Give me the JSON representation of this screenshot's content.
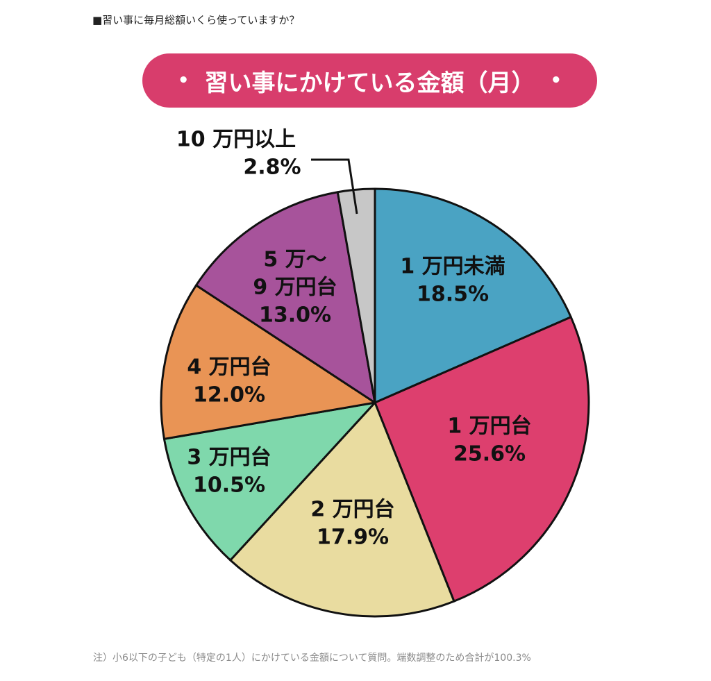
{
  "heading": "■習い事に毎月総額いくら使っていますか？",
  "banner": {
    "title": "習い事にかけている金額（月）",
    "dot_left": "•",
    "dot_right": "•"
  },
  "chart_data": {
    "type": "pie",
    "title": "習い事にかけている金額（月）",
    "slices": [
      {
        "label_lines": [
          "1 万円未満"
        ],
        "value": 18.5,
        "value_label": "18.5%",
        "color": "#4aa3c3"
      },
      {
        "label_lines": [
          "1 万円台"
        ],
        "value": 25.6,
        "value_label": "25.6%",
        "color": "#dd3f6e"
      },
      {
        "label_lines": [
          "2 万円台"
        ],
        "value": 17.9,
        "value_label": "17.9%",
        "color": "#e9dca0"
      },
      {
        "label_lines": [
          "3 万円台"
        ],
        "value": 10.5,
        "value_label": "10.5%",
        "color": "#7fd8ac"
      },
      {
        "label_lines": [
          "4 万円台"
        ],
        "value": 12.0,
        "value_label": "12.0%",
        "color": "#e99455"
      },
      {
        "label_lines": [
          "5 万〜",
          "9 万円台"
        ],
        "value": 13.0,
        "value_label": "13.0%",
        "color": "#a7539b"
      },
      {
        "label_lines": [
          "10 万円以上"
        ],
        "value": 2.8,
        "value_label": "2.8%",
        "color": "#c7c7c7"
      }
    ],
    "start": "12 o'clock",
    "direction": "clockwise"
  },
  "footnote": "注）小6以下の子ども（特定の1人）にかけている金額について質問。端数調整のため合計が100.3%"
}
